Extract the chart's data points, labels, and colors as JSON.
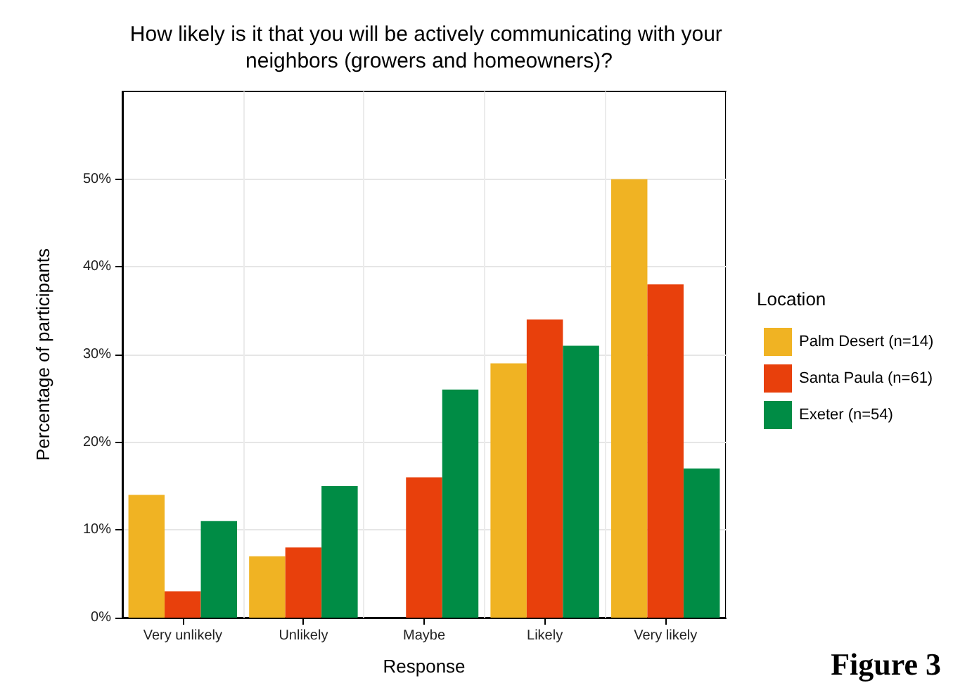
{
  "chart_data": {
    "type": "bar",
    "title": "How likely is it that you will be actively communicating with your neighbors (growers and homeowners)?",
    "xlabel": "Response",
    "ylabel": "Percentage of participants",
    "legend_title": "Location",
    "categories": [
      "Very unlikely",
      "Unlikely",
      "Maybe",
      "Likely",
      "Very likely"
    ],
    "series": [
      {
        "name": "Palm Desert (n=14)",
        "color": "#f0b323",
        "values": [
          14,
          7,
          0,
          29,
          50
        ]
      },
      {
        "name": "Santa Paula (n=61)",
        "color": "#e8400c",
        "values": [
          3,
          8,
          16,
          34,
          38
        ]
      },
      {
        "name": "Exeter (n=54)",
        "color": "#008c45",
        "values": [
          11,
          15,
          26,
          31,
          17
        ]
      }
    ],
    "ylim": [
      0,
      60
    ],
    "yticks": [
      {
        "value": 0,
        "label": "0%"
      },
      {
        "value": 10,
        "label": "10%"
      },
      {
        "value": 20,
        "label": "20%"
      },
      {
        "value": 30,
        "label": "30%"
      },
      {
        "value": 40,
        "label": "40%"
      },
      {
        "value": 50,
        "label": "50%"
      }
    ],
    "grid": true,
    "legend": "right",
    "annotations": [
      "Figure 3"
    ]
  }
}
